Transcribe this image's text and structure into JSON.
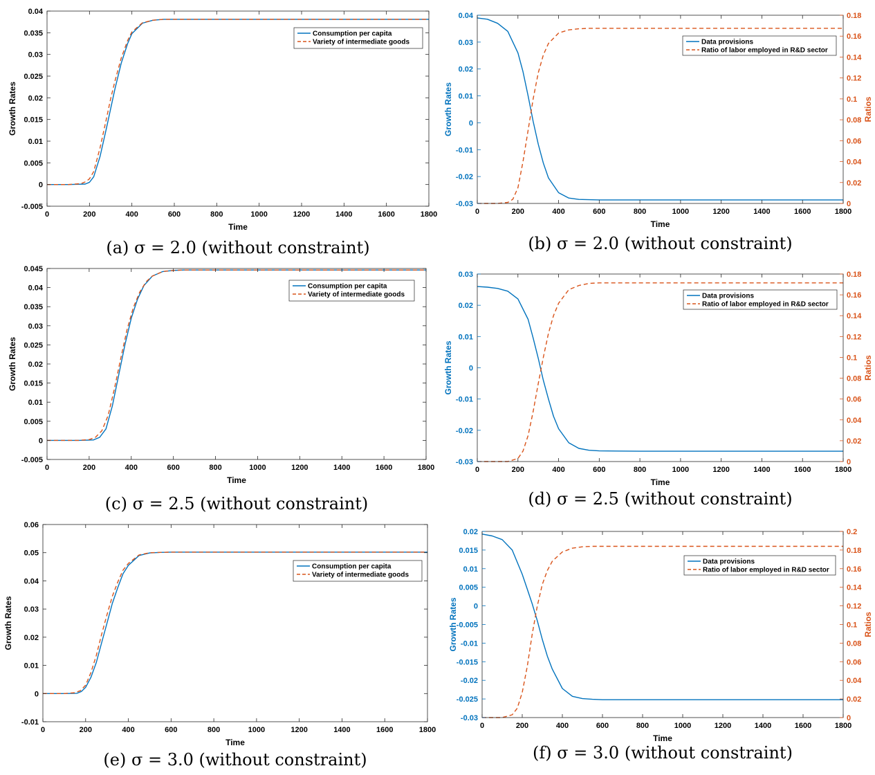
{
  "colors": {
    "blue": "#0072BD",
    "orange": "#D95319",
    "axis": "#262626"
  },
  "chart_data": [
    {
      "id": "a",
      "type": "line",
      "caption": "(a) σ = 2.0 (without constraint)",
      "xlabel": "Time",
      "ylabel": "Growth Rates",
      "xlim": [
        0,
        1800
      ],
      "ylim": [
        -0.005,
        0.04
      ],
      "xticks": [
        "0",
        "200",
        "400",
        "600",
        "800",
        "1000",
        "1200",
        "1400",
        "1600",
        "1800"
      ],
      "yticks": [
        "-0.005",
        "0",
        "0.005",
        "0.01",
        "0.015",
        "0.02",
        "0.025",
        "0.03",
        "0.035",
        "0.04"
      ],
      "legend": "top-right",
      "series": [
        {
          "name": "Consumption per capita",
          "style": "solid",
          "axis": "left",
          "x": [
            0,
            100,
            180,
            200,
            220,
            250,
            280,
            300,
            320,
            350,
            380,
            400,
            450,
            500,
            550,
            600,
            800,
            1000,
            1200,
            1400,
            1600,
            1800
          ],
          "y": [
            0,
            0,
            0.0001,
            0.0005,
            0.0018,
            0.0065,
            0.013,
            0.0175,
            0.022,
            0.028,
            0.0325,
            0.0348,
            0.0372,
            0.0379,
            0.0381,
            0.0381,
            0.0381,
            0.0381,
            0.0381,
            0.0381,
            0.0381,
            0.0381
          ]
        },
        {
          "name": "Variety of intermediate goods",
          "style": "dashed",
          "axis": "left",
          "x": [
            0,
            100,
            160,
            180,
            200,
            220,
            250,
            280,
            300,
            320,
            350,
            380,
            400,
            450,
            500,
            550,
            600,
            800,
            1000,
            1200,
            1400,
            1600,
            1800
          ],
          "y": [
            0,
            0,
            0.0002,
            0.0006,
            0.0013,
            0.003,
            0.0085,
            0.0152,
            0.0198,
            0.0238,
            0.0292,
            0.0332,
            0.0352,
            0.0373,
            0.0379,
            0.0381,
            0.0381,
            0.0381,
            0.0381,
            0.0381,
            0.0381,
            0.0381,
            0.0381
          ]
        }
      ]
    },
    {
      "id": "b",
      "type": "line",
      "caption": "(b) σ = 2.0 (without constraint)",
      "xlabel": "Time",
      "ylabel": "Growth Rates",
      "y2label": "Ratios",
      "xlim": [
        0,
        1800
      ],
      "ylim": [
        -0.03,
        0.04
      ],
      "y2lim": [
        0,
        0.18
      ],
      "xticks": [
        "0",
        "200",
        "400",
        "600",
        "800",
        "1000",
        "1200",
        "1400",
        "1600",
        "1800"
      ],
      "yticks": [
        "-0.03",
        "-0.02",
        "-0.01",
        "0",
        "0.01",
        "0.02",
        "0.03",
        "0.04"
      ],
      "y2ticks": [
        "0",
        "0.02",
        "0.04",
        "0.06",
        "0.08",
        "0.1",
        "0.12",
        "0.14",
        "0.16",
        "0.18"
      ],
      "legend": "top-right",
      "series": [
        {
          "name": "Data provisions",
          "style": "solid",
          "axis": "left",
          "x": [
            0,
            50,
            100,
            150,
            200,
            225,
            250,
            275,
            300,
            325,
            350,
            400,
            450,
            500,
            550,
            600,
            800,
            1000,
            1200,
            1400,
            1600,
            1800
          ],
          "y": [
            0.039,
            0.0385,
            0.037,
            0.034,
            0.026,
            0.019,
            0.01,
            0.0005,
            -0.008,
            -0.015,
            -0.0205,
            -0.026,
            -0.028,
            -0.0285,
            -0.0286,
            -0.0287,
            -0.0287,
            -0.0287,
            -0.0287,
            -0.0287,
            -0.0287,
            -0.0287
          ]
        },
        {
          "name": "Ratio of labor employed in R&D sector",
          "style": "dashed",
          "axis": "right",
          "x": [
            0,
            100,
            150,
            175,
            200,
            225,
            250,
            275,
            300,
            325,
            350,
            400,
            450,
            500,
            550,
            600,
            800,
            1000,
            1200,
            1400,
            1600,
            1800
          ],
          "y": [
            0,
            0,
            0.001,
            0.004,
            0.015,
            0.04,
            0.07,
            0.1,
            0.125,
            0.142,
            0.153,
            0.163,
            0.166,
            0.167,
            0.1675,
            0.1675,
            0.1675,
            0.1675,
            0.1675,
            0.1675,
            0.1675,
            0.1675
          ]
        }
      ]
    },
    {
      "id": "c",
      "type": "line",
      "caption": "(c) σ = 2.5 (without constraint)",
      "xlabel": "Time",
      "ylabel": "Growth Rates",
      "xlim": [
        0,
        1800
      ],
      "ylim": [
        -0.005,
        0.045
      ],
      "xticks": [
        "0",
        "200",
        "400",
        "600",
        "800",
        "1000",
        "1200",
        "1400",
        "1600",
        "1800"
      ],
      "yticks": [
        "-0.005",
        "0",
        "0.005",
        "0.01",
        "0.015",
        "0.02",
        "0.025",
        "0.03",
        "0.035",
        "0.04",
        "0.045"
      ],
      "legend": "top-right",
      "series": [
        {
          "name": "Consumption per capita",
          "style": "solid",
          "axis": "left",
          "x": [
            0,
            150,
            220,
            250,
            280,
            310,
            340,
            370,
            400,
            430,
            460,
            500,
            550,
            600,
            650,
            800,
            1000,
            1200,
            1400,
            1600,
            1800
          ],
          "y": [
            0,
            0,
            0.0001,
            0.0008,
            0.003,
            0.009,
            0.017,
            0.025,
            0.032,
            0.037,
            0.0405,
            0.043,
            0.0442,
            0.0445,
            0.0446,
            0.0446,
            0.0446,
            0.0446,
            0.0446,
            0.0446,
            0.0446
          ]
        },
        {
          "name": "Variety of intermediate goods",
          "style": "dashed",
          "axis": "left",
          "x": [
            0,
            150,
            200,
            230,
            260,
            290,
            320,
            350,
            380,
            410,
            440,
            470,
            500,
            550,
            600,
            650,
            800,
            1000,
            1200,
            1400,
            1600,
            1800
          ],
          "y": [
            0,
            0,
            0.0002,
            0.0008,
            0.0025,
            0.0065,
            0.0135,
            0.0215,
            0.029,
            0.0348,
            0.0388,
            0.0415,
            0.043,
            0.0442,
            0.0445,
            0.0446,
            0.0446,
            0.0446,
            0.0446,
            0.0446,
            0.0446,
            0.0446
          ]
        }
      ]
    },
    {
      "id": "d",
      "type": "line",
      "caption": "(d) σ = 2.5 (without constraint)",
      "xlabel": "Time",
      "ylabel": "Growth Rates",
      "y2label": "Ratios",
      "xlim": [
        0,
        1800
      ],
      "ylim": [
        -0.03,
        0.03
      ],
      "y2lim": [
        0,
        0.18
      ],
      "xticks": [
        "0",
        "200",
        "400",
        "600",
        "800",
        "1000",
        "1200",
        "1400",
        "1600",
        "1800"
      ],
      "yticks": [
        "-0.03",
        "-0.02",
        "-0.01",
        "0",
        "0.01",
        "0.02",
        "0.03"
      ],
      "y2ticks": [
        "0",
        "0.02",
        "0.04",
        "0.06",
        "0.08",
        "0.1",
        "0.12",
        "0.14",
        "0.16",
        "0.18"
      ],
      "legend": "top-right",
      "series": [
        {
          "name": "Data provisions",
          "style": "solid",
          "axis": "left",
          "x": [
            0,
            50,
            100,
            150,
            200,
            250,
            275,
            300,
            325,
            350,
            375,
            400,
            450,
            500,
            550,
            600,
            800,
            1000,
            1200,
            1400,
            1600,
            1800
          ],
          "y": [
            0.026,
            0.0258,
            0.0254,
            0.0245,
            0.022,
            0.0155,
            0.0095,
            0.003,
            -0.004,
            -0.01,
            -0.0155,
            -0.0195,
            -0.024,
            -0.0258,
            -0.0264,
            -0.0266,
            -0.0267,
            -0.0267,
            -0.0267,
            -0.0267,
            -0.0267,
            -0.0267
          ]
        },
        {
          "name": "Ratio of labor employed in R&D sector",
          "style": "dashed",
          "axis": "right",
          "x": [
            0,
            150,
            200,
            225,
            250,
            275,
            300,
            325,
            350,
            375,
            400,
            450,
            500,
            550,
            600,
            800,
            1000,
            1200,
            1400,
            1600,
            1800
          ],
          "y": [
            0,
            0,
            0.003,
            0.01,
            0.025,
            0.048,
            0.075,
            0.1,
            0.123,
            0.14,
            0.152,
            0.165,
            0.169,
            0.171,
            0.1715,
            0.1715,
            0.1715,
            0.1715,
            0.1715,
            0.1715,
            0.1715
          ]
        }
      ]
    },
    {
      "id": "e",
      "type": "line",
      "caption": "(e) σ = 3.0 (without constraint)",
      "xlabel": "Time",
      "ylabel": "Growth Rates",
      "xlim": [
        0,
        1800
      ],
      "ylim": [
        -0.01,
        0.06
      ],
      "xticks": [
        "0",
        "200",
        "400",
        "600",
        "800",
        "1000",
        "1200",
        "1400",
        "1600",
        "1800"
      ],
      "yticks": [
        "-0.01",
        "0",
        "0.01",
        "0.02",
        "0.03",
        "0.04",
        "0.05",
        "0.06"
      ],
      "legend": "top-right",
      "series": [
        {
          "name": "Consumption per capita",
          "style": "solid",
          "axis": "left",
          "x": [
            0,
            100,
            160,
            180,
            200,
            225,
            250,
            275,
            300,
            325,
            350,
            375,
            400,
            450,
            500,
            550,
            600,
            800,
            1000,
            1200,
            1400,
            1600,
            1800
          ],
          "y": [
            0,
            0,
            0.0001,
            0.0007,
            0.0022,
            0.0058,
            0.011,
            0.018,
            0.025,
            0.032,
            0.0375,
            0.0425,
            0.0455,
            0.049,
            0.0499,
            0.0501,
            0.0502,
            0.0502,
            0.0502,
            0.0502,
            0.0502,
            0.0502,
            0.0502
          ]
        },
        {
          "name": "Variety of intermediate goods",
          "style": "dashed",
          "axis": "left",
          "x": [
            0,
            100,
            150,
            175,
            200,
            225,
            250,
            275,
            300,
            325,
            350,
            375,
            400,
            450,
            500,
            550,
            600,
            800,
            1000,
            1200,
            1400,
            1600,
            1800
          ],
          "y": [
            0,
            0,
            0.0003,
            0.001,
            0.003,
            0.0075,
            0.0135,
            0.021,
            0.028,
            0.0345,
            0.0395,
            0.0438,
            0.0462,
            0.0492,
            0.05,
            0.0501,
            0.0502,
            0.0502,
            0.0502,
            0.0502,
            0.0502,
            0.0502,
            0.0502
          ]
        }
      ]
    },
    {
      "id": "f",
      "type": "line",
      "caption": "(f) σ = 3.0 (without constraint)",
      "xlabel": "Time",
      "ylabel": "Growth Rates",
      "y2label": "Ratios",
      "xlim": [
        0,
        1800
      ],
      "ylim": [
        -0.03,
        0.02
      ],
      "y2lim": [
        0,
        0.2
      ],
      "xticks": [
        "0",
        "200",
        "400",
        "600",
        "800",
        "1000",
        "1200",
        "1400",
        "1600",
        "1800"
      ],
      "yticks": [
        "-0.03",
        "-0.025",
        "-0.02",
        "-0.015",
        "-0.01",
        "-0.005",
        "0",
        "0.005",
        "0.01",
        "0.015",
        "0.02"
      ],
      "y2ticks": [
        "0",
        "0.02",
        "0.04",
        "0.06",
        "0.08",
        "0.1",
        "0.12",
        "0.14",
        "0.16",
        "0.18",
        "0.2"
      ],
      "legend": "top-right",
      "series": [
        {
          "name": "Data provisions",
          "style": "solid",
          "axis": "left",
          "x": [
            0,
            50,
            100,
            150,
            200,
            225,
            250,
            275,
            300,
            325,
            350,
            400,
            450,
            500,
            550,
            600,
            800,
            1000,
            1200,
            1400,
            1600,
            1800
          ],
          "y": [
            0.0193,
            0.0188,
            0.0178,
            0.015,
            0.0085,
            0.0045,
            0.0005,
            -0.004,
            -0.009,
            -0.0135,
            -0.017,
            -0.0222,
            -0.0243,
            -0.0249,
            -0.0251,
            -0.0252,
            -0.0252,
            -0.0252,
            -0.0252,
            -0.0252,
            -0.0252,
            -0.0252
          ]
        },
        {
          "name": "Ratio of labor employed in R&D sector",
          "style": "dashed",
          "axis": "right",
          "x": [
            0,
            100,
            150,
            175,
            200,
            225,
            250,
            275,
            300,
            325,
            350,
            400,
            450,
            500,
            550,
            600,
            800,
            1000,
            1200,
            1400,
            1600,
            1800
          ],
          "y": [
            0,
            0,
            0.003,
            0.01,
            0.027,
            0.055,
            0.09,
            0.12,
            0.143,
            0.158,
            0.168,
            0.178,
            0.182,
            0.1835,
            0.184,
            0.184,
            0.184,
            0.184,
            0.184,
            0.184,
            0.184,
            0.184
          ]
        }
      ]
    }
  ]
}
